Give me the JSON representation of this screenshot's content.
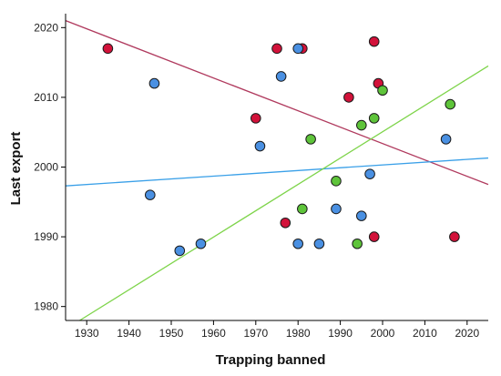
{
  "chart_data": {
    "type": "scatter",
    "title": "",
    "xlabel": "Trapping banned",
    "ylabel": "Last export",
    "xlim": [
      1925,
      2025
    ],
    "ylim": [
      1978,
      2022
    ],
    "xticks": [
      1930,
      1940,
      1950,
      1960,
      1970,
      1980,
      1990,
      2000,
      2010,
      2020
    ],
    "yticks": [
      1980,
      1990,
      2000,
      2010,
      2020
    ],
    "grid": false,
    "legend": "none",
    "series": [
      {
        "color": "#d2123a",
        "points": [
          {
            "x": 1935,
            "y": 2017
          },
          {
            "x": 1975,
            "y": 2017
          },
          {
            "x": 1981,
            "y": 2017
          },
          {
            "x": 1998,
            "y": 2018
          },
          {
            "x": 1999,
            "y": 2012
          },
          {
            "x": 1992,
            "y": 2010
          },
          {
            "x": 1970,
            "y": 2007
          },
          {
            "x": 1977,
            "y": 1992
          },
          {
            "x": 1998,
            "y": 1990
          },
          {
            "x": 2017,
            "y": 1990
          }
        ],
        "fit": {
          "x1": 1925,
          "y1": 2021,
          "x2": 2025,
          "y2": 1997.5,
          "color": "#b03a5e"
        }
      },
      {
        "color": "#4a90e2",
        "points": [
          {
            "x": 1946,
            "y": 2012
          },
          {
            "x": 1976,
            "y": 2013
          },
          {
            "x": 1980,
            "y": 2017
          },
          {
            "x": 1971,
            "y": 2003
          },
          {
            "x": 1945,
            "y": 1996
          },
          {
            "x": 1952,
            "y": 1988
          },
          {
            "x": 1957,
            "y": 1989
          },
          {
            "x": 1980,
            "y": 1989
          },
          {
            "x": 1985,
            "y": 1989
          },
          {
            "x": 1989,
            "y": 1994
          },
          {
            "x": 1995,
            "y": 1993
          },
          {
            "x": 1997,
            "y": 1999
          },
          {
            "x": 2015,
            "y": 2004
          }
        ],
        "fit": {
          "x1": 1925,
          "y1": 1997.3,
          "x2": 2025,
          "y2": 2001.3,
          "color": "#3aa0e8"
        }
      },
      {
        "color": "#5ec43a",
        "points": [
          {
            "x": 1983,
            "y": 2004
          },
          {
            "x": 1989,
            "y": 1998
          },
          {
            "x": 1981,
            "y": 1994
          },
          {
            "x": 1994,
            "y": 1989
          },
          {
            "x": 1995,
            "y": 2006
          },
          {
            "x": 1998,
            "y": 2007
          },
          {
            "x": 2000,
            "y": 2011
          },
          {
            "x": 2016,
            "y": 2009
          }
        ],
        "fit": {
          "x1": 1927,
          "y1": 1977.5,
          "x2": 2025,
          "y2": 2014.5,
          "color": "#7ed44a"
        }
      }
    ]
  }
}
